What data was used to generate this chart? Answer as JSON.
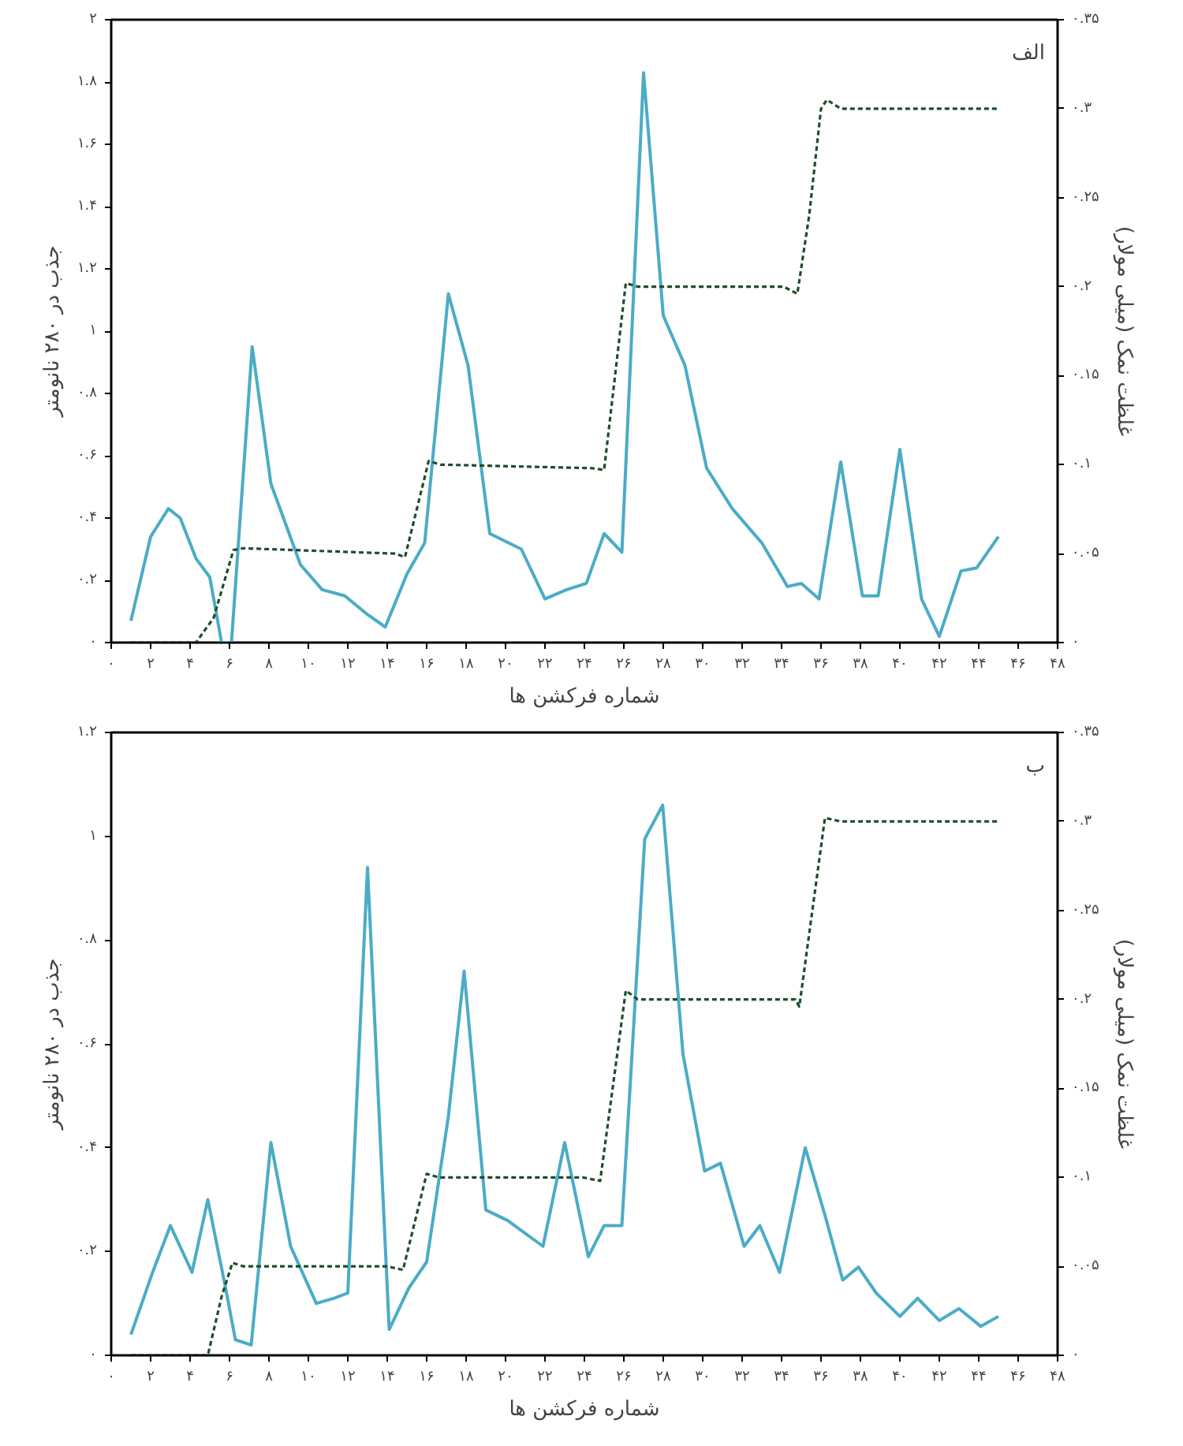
{
  "chart_data": [
    {
      "type": "line",
      "xlabel": "شماره فرکشن ها",
      "ylabel": "جذب در ۲۸۰ نانومتر",
      "y2label": "غلظت نمک (میلی مولار)",
      "annotations": [
        "الف"
      ],
      "xlim": [
        0,
        48
      ],
      "ylim": [
        0,
        2
      ],
      "y2lim": [
        0,
        0.35
      ],
      "grid": false,
      "marker": "none",
      "xticks": [
        {
          "value": 0,
          "label": "۰"
        },
        {
          "value": 2,
          "label": "۲"
        },
        {
          "value": 4,
          "label": "۴"
        },
        {
          "value": 6,
          "label": "۶"
        },
        {
          "value": 8,
          "label": "۸"
        },
        {
          "value": 10,
          "label": "۱۰"
        },
        {
          "value": 12,
          "label": "۱۲"
        },
        {
          "value": 14,
          "label": "۱۴"
        },
        {
          "value": 16,
          "label": "۱۶"
        },
        {
          "value": 18,
          "label": "۱۸"
        },
        {
          "value": 20,
          "label": "۲۰"
        },
        {
          "value": 22,
          "label": "۲۲"
        },
        {
          "value": 24,
          "label": "۲۴"
        },
        {
          "value": 26,
          "label": "۲۶"
        },
        {
          "value": 28,
          "label": "۲۸"
        },
        {
          "value": 30,
          "label": "۳۰"
        },
        {
          "value": 32,
          "label": "۳۲"
        },
        {
          "value": 34,
          "label": "۳۴"
        },
        {
          "value": 36,
          "label": "۳۶"
        },
        {
          "value": 38,
          "label": "۳۸"
        },
        {
          "value": 40,
          "label": "۴۰"
        },
        {
          "value": 42,
          "label": "۴۲"
        },
        {
          "value": 44,
          "label": "۴۴"
        },
        {
          "value": 46,
          "label": "۴۶"
        },
        {
          "value": 48,
          "label": "۴۸"
        }
      ],
      "yticks": [
        {
          "value": 0,
          "label": "۰"
        },
        {
          "value": 0.2,
          "label": "۰.۲"
        },
        {
          "value": 0.4,
          "label": "۰.۴"
        },
        {
          "value": 0.6,
          "label": "۰.۶"
        },
        {
          "value": 0.8,
          "label": "۰.۸"
        },
        {
          "value": 1,
          "label": "۱"
        },
        {
          "value": 1.2,
          "label": "۱.۲"
        },
        {
          "value": 1.4,
          "label": "۱.۴"
        },
        {
          "value": 1.6,
          "label": "۱.۶"
        },
        {
          "value": 1.8,
          "label": "۱.۸"
        },
        {
          "value": 2,
          "label": "۲"
        }
      ],
      "y2ticks": [
        {
          "value": 0,
          "label": "۰"
        },
        {
          "value": 0.05,
          "label": "۰.۰۵"
        },
        {
          "value": 0.1,
          "label": "۰.۱"
        },
        {
          "value": 0.15,
          "label": "۰.۱۵"
        },
        {
          "value": 0.2,
          "label": "۰.۲"
        },
        {
          "value": 0.25,
          "label": "۰.۲۵"
        },
        {
          "value": 0.3,
          "label": "۰.۳"
        },
        {
          "value": 0.35,
          "label": "۰.۳۵"
        }
      ],
      "series": [
        {
          "color": "#4bacc6",
          "line_style": "solid",
          "x": [
            1.0,
            2.0,
            2.9,
            3.5,
            4.3,
            5.0,
            5.6,
            6.1,
            7.15,
            8.1,
            9.6,
            10.7,
            11.85,
            13.0,
            13.9,
            15.0,
            15.9,
            17.1,
            18.1,
            19.2,
            20.8,
            22.0,
            23.1,
            24.1,
            25.0,
            25.9,
            27.0,
            28.0,
            29.1,
            30.2,
            31.5,
            33.0,
            34.3,
            35.0,
            35.9,
            37.0,
            38.1,
            38.9,
            40.0,
            41.1,
            42.0,
            43.1,
            43.9,
            45.0
          ],
          "values": [
            0.07,
            0.34,
            0.43,
            0.4,
            0.27,
            0.21,
            0.0,
            0.0,
            0.95,
            0.51,
            0.25,
            0.17,
            0.15,
            0.09,
            0.05,
            0.22,
            0.32,
            1.12,
            0.89,
            0.35,
            0.3,
            0.14,
            0.17,
            0.19,
            0.35,
            0.29,
            1.83,
            1.05,
            0.89,
            0.56,
            0.43,
            0.32,
            0.18,
            0.19,
            0.14,
            0.58,
            0.15,
            0.15,
            0.62,
            0.14,
            0.02,
            0.23,
            0.24,
            0.34
          ]
        },
        {
          "color": "#1e4d2b",
          "line_style": "dashed",
          "axis": "y2",
          "x": [
            1.0,
            4.3,
            5.2,
            6.2,
            6.7,
            14.4,
            14.9,
            16.1,
            16.7,
            24.4,
            25.0,
            26.1,
            26.7,
            34.1,
            34.8,
            35.4,
            36.0,
            36.3,
            37.0,
            45.0
          ],
          "values": [
            0,
            0,
            0.014,
            0.052,
            0.053,
            0.05,
            0.048,
            0.102,
            0.1,
            0.098,
            0.097,
            0.202,
            0.2,
            0.2,
            0.196,
            0.24,
            0.3,
            0.305,
            0.3,
            0.3
          ]
        }
      ]
    },
    {
      "type": "line",
      "xlabel": "شماره فرکشن ها",
      "ylabel": "جذب در ۲۸۰ نانومتر",
      "y2label": "غلظت نمک (میلی مولار)",
      "annotations": [
        "ب"
      ],
      "xlim": [
        0,
        48
      ],
      "ylim": [
        0,
        1.2
      ],
      "y2lim": [
        0,
        0.35
      ],
      "grid": false,
      "marker": "none",
      "xticks": [
        {
          "value": 0,
          "label": "۰"
        },
        {
          "value": 2,
          "label": "۲"
        },
        {
          "value": 4,
          "label": "۴"
        },
        {
          "value": 6,
          "label": "۶"
        },
        {
          "value": 8,
          "label": "۸"
        },
        {
          "value": 10,
          "label": "۱۰"
        },
        {
          "value": 12,
          "label": "۱۲"
        },
        {
          "value": 14,
          "label": "۱۴"
        },
        {
          "value": 16,
          "label": "۱۶"
        },
        {
          "value": 18,
          "label": "۱۸"
        },
        {
          "value": 20,
          "label": "۲۰"
        },
        {
          "value": 22,
          "label": "۲۲"
        },
        {
          "value": 24,
          "label": "۲۴"
        },
        {
          "value": 26,
          "label": "۲۶"
        },
        {
          "value": 28,
          "label": "۲۸"
        },
        {
          "value": 30,
          "label": "۳۰"
        },
        {
          "value": 32,
          "label": "۳۲"
        },
        {
          "value": 34,
          "label": "۳۴"
        },
        {
          "value": 36,
          "label": "۳۶"
        },
        {
          "value": 38,
          "label": "۳۸"
        },
        {
          "value": 40,
          "label": "۴۰"
        },
        {
          "value": 42,
          "label": "۴۲"
        },
        {
          "value": 44,
          "label": "۴۴"
        },
        {
          "value": 46,
          "label": "۴۶"
        },
        {
          "value": 48,
          "label": "۴۸"
        }
      ],
      "yticks": [
        {
          "value": 0,
          "label": "۰"
        },
        {
          "value": 0.2,
          "label": "۰.۲"
        },
        {
          "value": 0.4,
          "label": "۰.۴"
        },
        {
          "value": 0.6,
          "label": "۰.۶"
        },
        {
          "value": 0.8,
          "label": "۰.۸"
        },
        {
          "value": 1,
          "label": "۱"
        },
        {
          "value": 1.2,
          "label": "۱.۲"
        }
      ],
      "y2ticks": [
        {
          "value": 0,
          "label": "۰"
        },
        {
          "value": 0.05,
          "label": "۰.۰۵"
        },
        {
          "value": 0.1,
          "label": "۰.۱"
        },
        {
          "value": 0.15,
          "label": "۰.۱۵"
        },
        {
          "value": 0.2,
          "label": "۰.۲"
        },
        {
          "value": 0.25,
          "label": "۰.۲۵"
        },
        {
          "value": 0.3,
          "label": "۰.۳"
        },
        {
          "value": 0.35,
          "label": "۰.۳۵"
        }
      ],
      "series": [
        {
          "color": "#4bacc6",
          "line_style": "solid",
          "x": [
            1.0,
            2.1,
            3.0,
            4.1,
            4.9,
            5.8,
            6.3,
            7.1,
            8.1,
            9.1,
            10.4,
            11.3,
            12.0,
            13.0,
            14.1,
            15.1,
            16.0,
            17.1,
            17.9,
            19.0,
            20.1,
            21.9,
            23.0,
            24.2,
            25.0,
            25.9,
            27.06,
            27.97,
            29.0,
            30.1,
            30.9,
            32.1,
            32.9,
            33.9,
            35.2,
            36.2,
            37.1,
            37.9,
            38.8,
            40.0,
            40.9,
            42.0,
            43.0,
            44.1,
            45.0
          ],
          "values": [
            0.04,
            0.16,
            0.25,
            0.16,
            0.3,
            0.13,
            0.03,
            0.02,
            0.41,
            0.21,
            0.1,
            0.11,
            0.12,
            0.94,
            0.05,
            0.13,
            0.18,
            0.46,
            0.74,
            0.28,
            0.26,
            0.21,
            0.41,
            0.19,
            0.25,
            0.25,
            0.995,
            1.06,
            0.58,
            0.355,
            0.37,
            0.21,
            0.25,
            0.16,
            0.4,
            0.27,
            0.145,
            0.17,
            0.12,
            0.075,
            0.11,
            0.067,
            0.09,
            0.056,
            0.075
          ]
        },
        {
          "color": "#1e4d2b",
          "line_style": "dashed",
          "axis": "y2",
          "x": [
            1.0,
            4.9,
            5.6,
            6.15,
            6.7,
            14.0,
            14.8,
            16.0,
            16.6,
            23.9,
            24.8,
            26.1,
            26.7,
            34.7,
            34.9,
            36.2,
            37.0,
            45.0
          ],
          "values": [
            0,
            0,
            0.033,
            0.052,
            0.05,
            0.05,
            0.048,
            0.102,
            0.1,
            0.1,
            0.098,
            0.205,
            0.2,
            0.2,
            0.196,
            0.302,
            0.3,
            0.3
          ]
        }
      ]
    }
  ]
}
